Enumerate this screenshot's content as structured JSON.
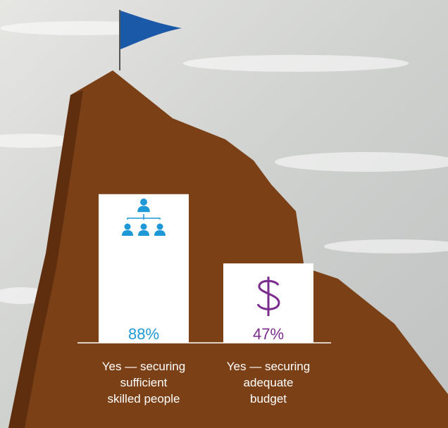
{
  "chart_data": {
    "type": "bar",
    "categories": [
      "Yes — securing\nsufficient\nskilled people",
      "Yes — securing\nadequate\nbudget"
    ],
    "values": [
      88,
      47
    ],
    "value_labels": [
      "88%",
      "47%"
    ],
    "color": "#ffffff",
    "label_colors": [
      "#1e98d7",
      "#7a2b8e"
    ]
  }
}
